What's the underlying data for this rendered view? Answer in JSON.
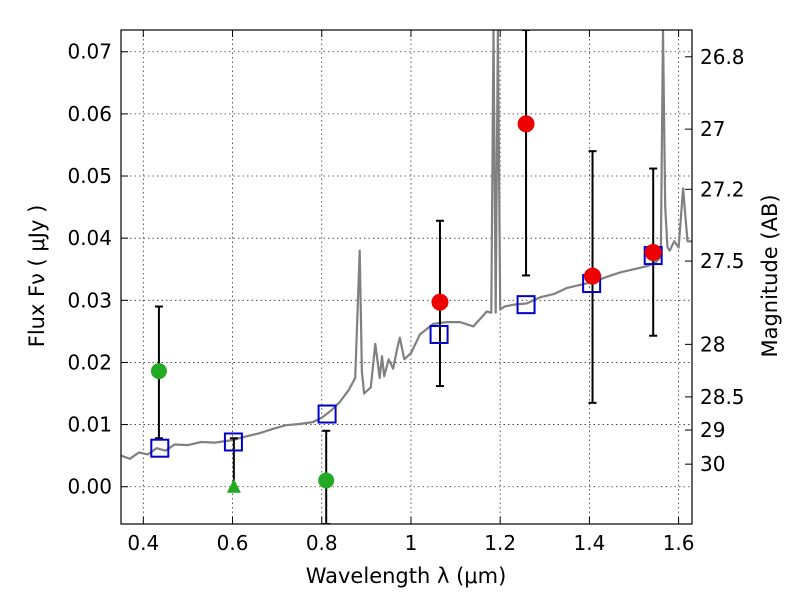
{
  "chart_data": {
    "type": "scatter",
    "xlabel": "Wavelength  λ (μm)",
    "ylabel": "Flux  Fν  ( μJy )",
    "ylabel_right": "Magnitude (AB)",
    "xlim": [
      0.35,
      1.63
    ],
    "ylim": [
      -0.006,
      0.0735
    ],
    "grid": true,
    "x_ticks": [
      {
        "value": 0.4,
        "label": "0.4"
      },
      {
        "value": 0.6,
        "label": "0.6"
      },
      {
        "value": 0.8,
        "label": "0.8"
      },
      {
        "value": 1.0,
        "label": "1"
      },
      {
        "value": 1.2,
        "label": "1.2"
      },
      {
        "value": 1.4,
        "label": "1.4"
      },
      {
        "value": 1.6,
        "label": "1.6"
      }
    ],
    "y_ticks": [
      {
        "value": 0.0,
        "label": "0.00"
      },
      {
        "value": 0.01,
        "label": "0.01"
      },
      {
        "value": 0.02,
        "label": "0.02"
      },
      {
        "value": 0.03,
        "label": "0.03"
      },
      {
        "value": 0.04,
        "label": "0.04"
      },
      {
        "value": 0.05,
        "label": "0.05"
      },
      {
        "value": 0.06,
        "label": "0.06"
      },
      {
        "value": 0.07,
        "label": "0.07"
      }
    ],
    "mag_ticks": [
      {
        "value": 26.8,
        "label": "26.8"
      },
      {
        "value": 27.0,
        "label": "27"
      },
      {
        "value": 27.2,
        "label": "27.2"
      },
      {
        "value": 27.5,
        "label": "27.5"
      },
      {
        "value": 28.0,
        "label": "28"
      },
      {
        "value": 28.5,
        "label": "28.5"
      },
      {
        "value": 29.0,
        "label": "29"
      },
      {
        "value": 30.0,
        "label": "30"
      }
    ],
    "colors": {
      "model": "#808080",
      "synthetic": "#0000cc",
      "detections": "#ee0000",
      "nondetections": "#22aa22",
      "errorbar": "#000000"
    },
    "model_spectrum": {
      "name": "",
      "x": [
        0.35,
        0.37,
        0.39,
        0.41,
        0.43,
        0.45,
        0.47,
        0.5,
        0.53,
        0.56,
        0.6,
        0.63,
        0.66,
        0.69,
        0.72,
        0.75,
        0.78,
        0.8,
        0.82,
        0.84,
        0.86,
        0.875,
        0.885,
        0.89,
        0.895,
        0.91,
        0.92,
        0.93,
        0.935,
        0.94,
        0.95,
        0.96,
        0.97,
        0.975,
        0.985,
        1.0,
        1.02,
        1.05,
        1.08,
        1.11,
        1.14,
        1.17,
        1.18,
        1.185,
        1.19,
        1.195,
        1.2,
        1.21,
        1.23,
        1.26,
        1.29,
        1.32,
        1.35,
        1.38,
        1.41,
        1.44,
        1.47,
        1.5,
        1.53,
        1.55,
        1.56,
        1.565,
        1.57,
        1.575,
        1.58,
        1.59,
        1.6,
        1.61,
        1.62,
        1.63
      ],
      "y": [
        0.005,
        0.0045,
        0.0055,
        0.0052,
        0.0062,
        0.0058,
        0.0068,
        0.0067,
        0.0072,
        0.0071,
        0.0075,
        0.0081,
        0.0086,
        0.0093,
        0.0099,
        0.0101,
        0.0104,
        0.0111,
        0.0122,
        0.0136,
        0.0155,
        0.0175,
        0.038,
        0.0185,
        0.015,
        0.016,
        0.023,
        0.0175,
        0.021,
        0.0178,
        0.0205,
        0.019,
        0.0225,
        0.024,
        0.0205,
        0.0215,
        0.0245,
        0.0262,
        0.0265,
        0.0265,
        0.0258,
        0.0282,
        0.028,
        0.0735,
        0.028,
        0.0735,
        0.0285,
        0.029,
        0.0293,
        0.0295,
        0.0305,
        0.031,
        0.032,
        0.0325,
        0.033,
        0.0338,
        0.0345,
        0.035,
        0.0355,
        0.0362,
        0.037,
        0.0735,
        0.045,
        0.0385,
        0.038,
        0.0395,
        0.0385,
        0.048,
        0.0395,
        0.0395
      ]
    },
    "synthetic_points": {
      "name": "",
      "x": [
        0.437,
        0.602,
        0.812,
        1.063,
        1.258,
        1.405,
        1.543
      ],
      "y": [
        0.0062,
        0.0072,
        0.0117,
        0.0245,
        0.0293,
        0.0327,
        0.0372
      ]
    },
    "detections": {
      "name": "",
      "points": [
        {
          "x": 1.065,
          "y": 0.0297,
          "yerr_low": 0.0162,
          "yerr_high": 0.0428
        },
        {
          "x": 1.258,
          "y": 0.0584,
          "yerr_low": 0.034,
          "yerr_high": 0.0735
        },
        {
          "x": 1.407,
          "y": 0.0339,
          "yerr_low": 0.0135,
          "yerr_high": 0.054
        },
        {
          "x": 1.543,
          "y": 0.0377,
          "yerr_low": 0.0243,
          "yerr_high": 0.0512
        }
      ]
    },
    "nondetections": {
      "name": "",
      "points": [
        {
          "x": 0.435,
          "y": 0.0186,
          "yerr_low": 0.0078,
          "yerr_high": 0.029,
          "marker": "circle"
        },
        {
          "x": 0.603,
          "y": 0.0,
          "yerr_low": -0.0005,
          "yerr_high": 0.0078,
          "marker": "triangle"
        },
        {
          "x": 0.81,
          "y": 0.001,
          "yerr_low": -0.006,
          "yerr_high": 0.009,
          "marker": "circle"
        }
      ]
    }
  }
}
